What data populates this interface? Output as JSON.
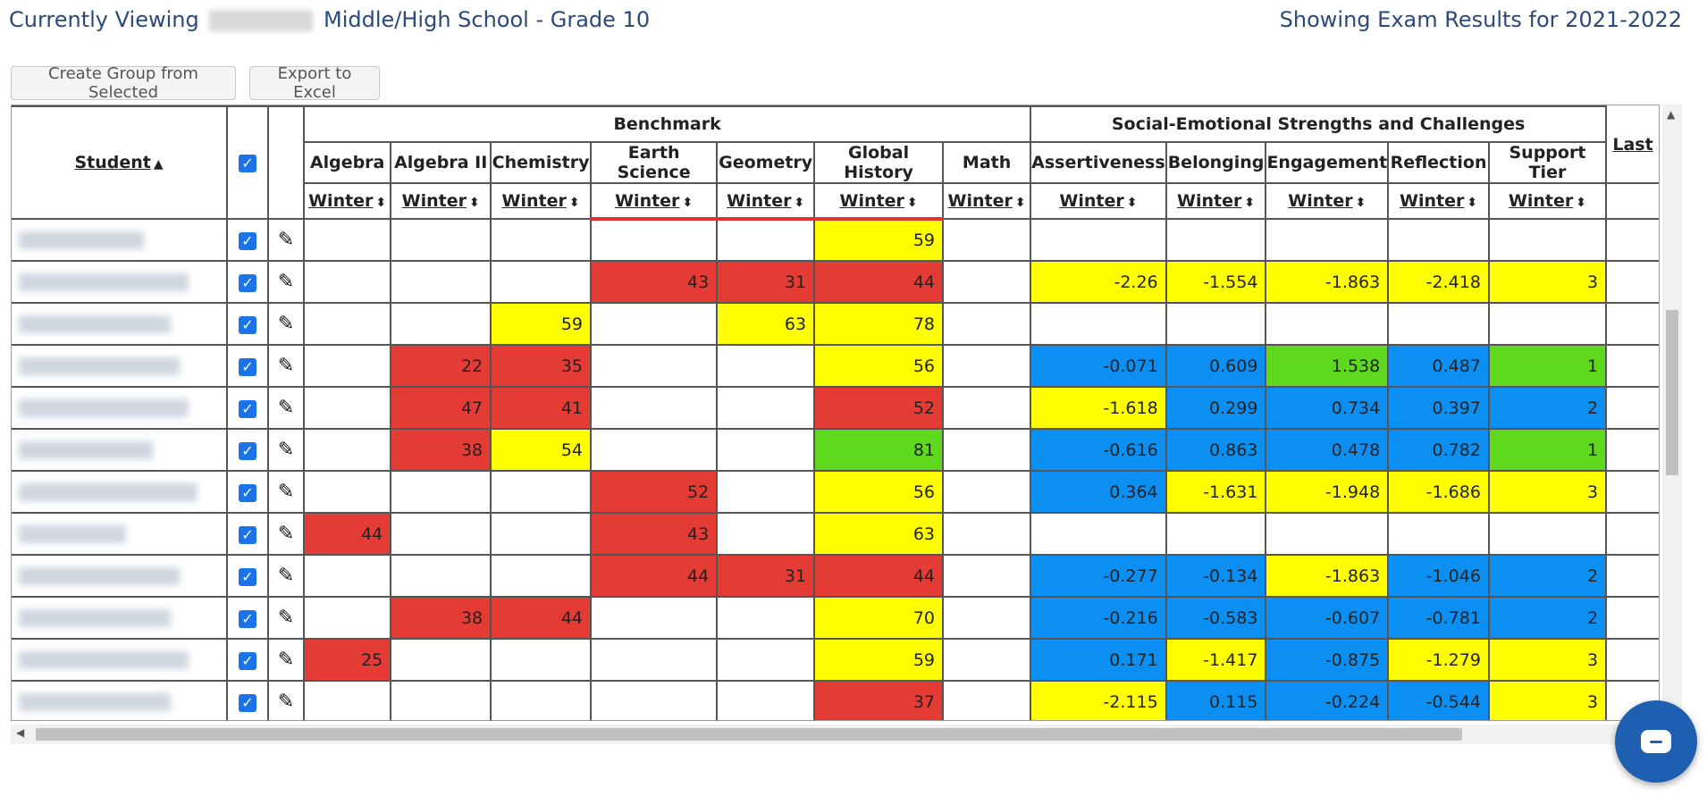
{
  "header": {
    "viewing_prefix": "Currently Viewing",
    "school_suffix": "Middle/High School - Grade 10",
    "results_label": "Showing Exam Results for 2021-2022"
  },
  "toolbar": {
    "create_group_label": "Create Group from Selected",
    "export_label": "Export to Excel"
  },
  "table": {
    "student_header": "Student",
    "groups": {
      "benchmark": "Benchmark",
      "sel": "Social-Emotional Strengths and Challenges"
    },
    "subjects": [
      "Algebra",
      "Algebra II",
      "Chemistry",
      "Earth Science",
      "Geometry",
      "Global History",
      "Math",
      "Assertiveness",
      "Belonging",
      "Engagement",
      "Reflection",
      "Support Tier"
    ],
    "last_header": "Last",
    "term_label": "Winter",
    "rows": [
      {
        "cells": [
          "",
          "",
          "",
          "",
          "",
          "59",
          "",
          "",
          "",
          "",
          "",
          ""
        ],
        "colors": [
          "",
          "",
          "",
          "",
          "",
          "yellow",
          "",
          "",
          "",
          "",
          "",
          ""
        ]
      },
      {
        "cells": [
          "",
          "",
          "",
          "43",
          "31",
          "44",
          "",
          "-2.26",
          "-1.554",
          "-1.863",
          "-2.418",
          "3"
        ],
        "colors": [
          "",
          "",
          "",
          "red",
          "red",
          "red",
          "",
          "yellow",
          "yellow",
          "yellow",
          "yellow",
          "yellow"
        ]
      },
      {
        "cells": [
          "",
          "",
          "59",
          "",
          "63",
          "78",
          "",
          "",
          "",
          "",
          "",
          ""
        ],
        "colors": [
          "",
          "",
          "yellow",
          "",
          "yellow",
          "yellow",
          "",
          "",
          "",
          "",
          "",
          ""
        ]
      },
      {
        "cells": [
          "",
          "22",
          "35",
          "",
          "",
          "56",
          "",
          "-0.071",
          "0.609",
          "1.538",
          "0.487",
          "1"
        ],
        "colors": [
          "",
          "red",
          "red",
          "",
          "",
          "yellow",
          "",
          "blue",
          "blue",
          "green",
          "blue",
          "green"
        ]
      },
      {
        "cells": [
          "",
          "47",
          "41",
          "",
          "",
          "52",
          "",
          "-1.618",
          "0.299",
          "0.734",
          "0.397",
          "2"
        ],
        "colors": [
          "",
          "red",
          "red",
          "",
          "",
          "red",
          "",
          "yellow",
          "blue",
          "blue",
          "blue",
          "blue"
        ]
      },
      {
        "cells": [
          "",
          "38",
          "54",
          "",
          "",
          "81",
          "",
          "-0.616",
          "0.863",
          "0.478",
          "0.782",
          "1"
        ],
        "colors": [
          "",
          "red",
          "yellow",
          "",
          "",
          "green",
          "",
          "blue",
          "blue",
          "blue",
          "blue",
          "green"
        ]
      },
      {
        "cells": [
          "",
          "",
          "",
          "52",
          "",
          "56",
          "",
          "0.364",
          "-1.631",
          "-1.948",
          "-1.686",
          "3"
        ],
        "colors": [
          "",
          "",
          "",
          "red",
          "",
          "yellow",
          "",
          "blue",
          "yellow",
          "yellow",
          "yellow",
          "yellow"
        ]
      },
      {
        "cells": [
          "44",
          "",
          "",
          "43",
          "",
          "63",
          "",
          "",
          "",
          "",
          "",
          ""
        ],
        "colors": [
          "red",
          "",
          "",
          "red",
          "",
          "yellow",
          "",
          "",
          "",
          "",
          "",
          ""
        ]
      },
      {
        "cells": [
          "",
          "",
          "",
          "44",
          "31",
          "44",
          "",
          "-0.277",
          "-0.134",
          "-1.863",
          "-1.046",
          "2"
        ],
        "colors": [
          "",
          "",
          "",
          "red",
          "red",
          "red",
          "",
          "blue",
          "blue",
          "yellow",
          "blue",
          "blue"
        ]
      },
      {
        "cells": [
          "",
          "38",
          "44",
          "",
          "",
          "70",
          "",
          "-0.216",
          "-0.583",
          "-0.607",
          "-0.781",
          "2"
        ],
        "colors": [
          "",
          "red",
          "red",
          "",
          "",
          "yellow",
          "",
          "blue",
          "blue",
          "blue",
          "blue",
          "blue"
        ]
      },
      {
        "cells": [
          "25",
          "",
          "",
          "",
          "",
          "59",
          "",
          "0.171",
          "-1.417",
          "-0.875",
          "-1.279",
          "3"
        ],
        "colors": [
          "red",
          "",
          "",
          "",
          "",
          "yellow",
          "",
          "blue",
          "yellow",
          "blue",
          "yellow",
          "yellow"
        ]
      },
      {
        "cells": [
          "",
          "",
          "",
          "",
          "",
          "37",
          "",
          "-2.115",
          "0.115",
          "-0.224",
          "-0.544",
          "3"
        ],
        "colors": [
          "",
          "",
          "",
          "",
          "",
          "red",
          "",
          "yellow",
          "blue",
          "blue",
          "blue",
          "yellow"
        ]
      }
    ]
  },
  "colors": {
    "red": "#e53b35",
    "yellow": "#ffff00",
    "blue": "#0b8ff2",
    "green": "#5fd91d",
    "title": "#2b4a7a"
  },
  "icons": {
    "pencil": "pencil-icon",
    "check": "checkbox-icon",
    "chat": "chat-icon"
  }
}
